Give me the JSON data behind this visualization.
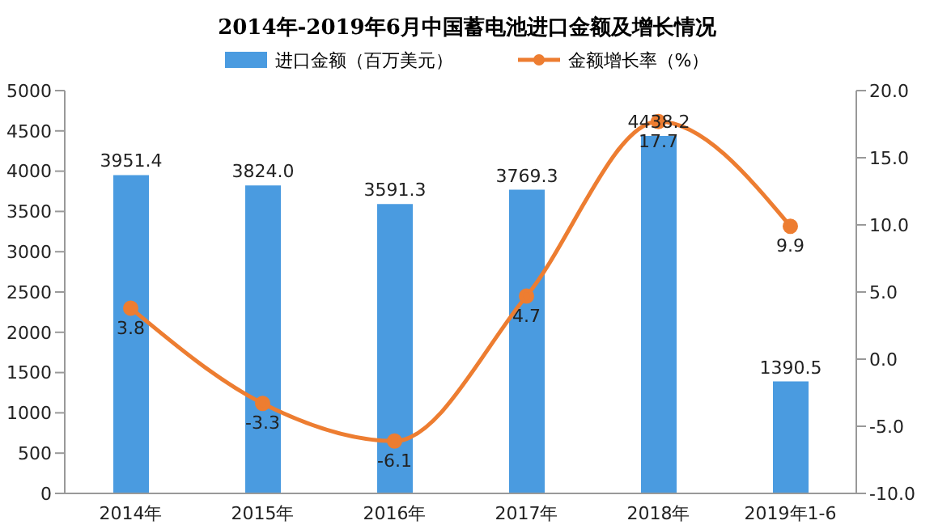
{
  "chart_data": {
    "type": "bar",
    "title": "2014年-2019年6月中国蓄电池进口金额及增长情况",
    "categories": [
      "2014年",
      "2015年",
      "2016年",
      "2017年",
      "2018年",
      "2019年1-6"
    ],
    "series": [
      {
        "name": "进口金额（百万美元）",
        "color": "#4a9be0",
        "values": [
          3951.4,
          3824.0,
          3591.3,
          3769.3,
          4438.2,
          1390.5
        ],
        "value_labels": [
          "3951.4",
          "3824.0",
          "3591.3",
          "3769.3",
          "4438.2",
          "1390.5"
        ]
      },
      {
        "name": "金额增长率（%）",
        "type": "line",
        "axis": "y2",
        "color": "#ed7d31",
        "values": [
          3.8,
          -3.3,
          -6.1,
          4.7,
          17.7,
          9.9
        ],
        "value_labels": [
          "3.8",
          "-3.3",
          "-6.1",
          "4.7",
          "17.7",
          "9.9"
        ]
      }
    ],
    "ylim": [
      0,
      5000
    ],
    "yticks": [
      0,
      500,
      1000,
      1500,
      2000,
      2500,
      3000,
      3500,
      4000,
      4500,
      5000
    ],
    "y2lim": [
      -10,
      20
    ],
    "y2ticks": [
      {
        "value": -10,
        "label": "-10.0"
      },
      {
        "value": -5,
        "label": "-5.0"
      },
      {
        "value": 0,
        "label": "0.0"
      },
      {
        "value": 5,
        "label": "5.0"
      },
      {
        "value": 10,
        "label": "10.0"
      },
      {
        "value": 15,
        "label": "15.0"
      },
      {
        "value": 20,
        "label": "20.0"
      }
    ],
    "legend": "top",
    "grid": false,
    "marker": "circle",
    "line_style": "solid"
  }
}
